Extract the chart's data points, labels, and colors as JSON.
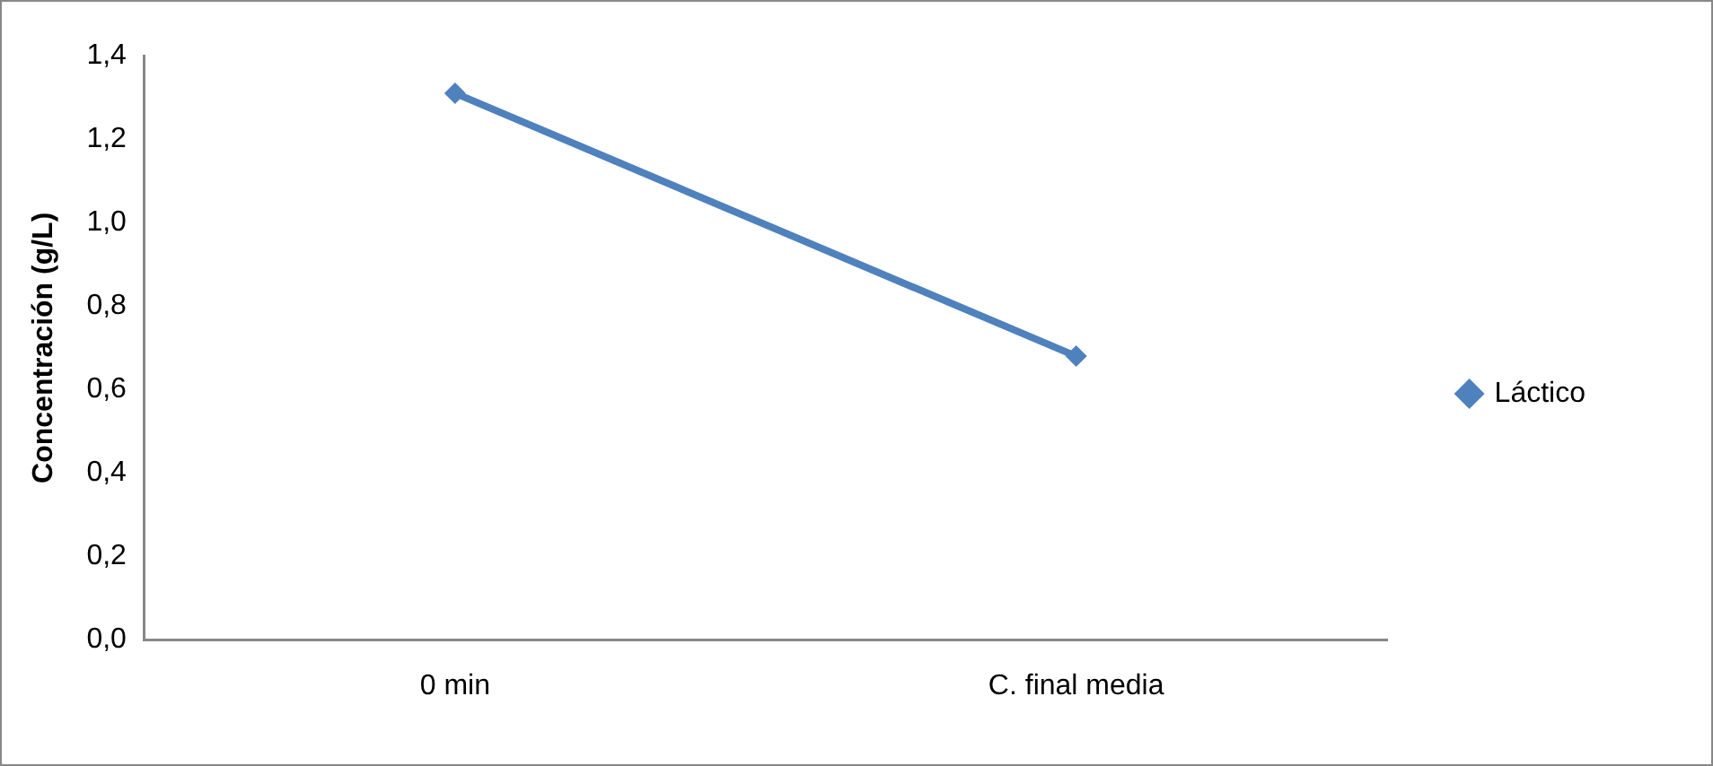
{
  "chart_data": {
    "type": "line",
    "ylabel": "Concentración (g/L)",
    "categories": [
      "0 min",
      "C. final media"
    ],
    "series": [
      {
        "name": "Láctico",
        "color": "#4f81bd",
        "values": [
          1.31,
          0.68
        ]
      }
    ],
    "ylim": [
      0,
      1.4
    ],
    "yticks": [
      {
        "value": 0,
        "label": "0,0"
      },
      {
        "value": 0.2,
        "label": "0,2"
      },
      {
        "value": 0.4,
        "label": "0,4"
      },
      {
        "value": 0.6,
        "label": "0,6"
      },
      {
        "value": 0.8,
        "label": "0,8"
      },
      {
        "value": 1,
        "label": "1,0"
      },
      {
        "value": 1.2,
        "label": "1,2"
      },
      {
        "value": 1.4,
        "label": "1,4"
      }
    ],
    "grid": false,
    "legend": "right",
    "marker": "diamond",
    "line_style": "solid"
  }
}
